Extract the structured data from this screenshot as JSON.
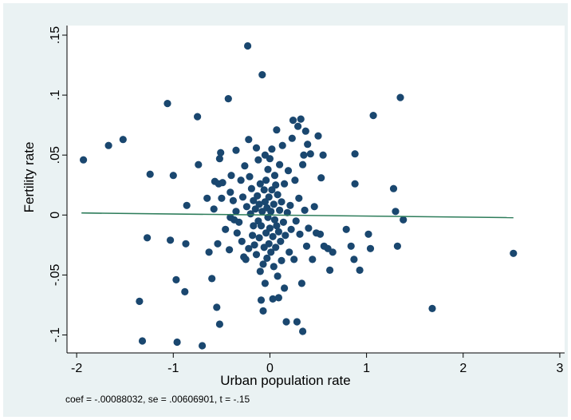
{
  "chart_data": {
    "type": "scatter",
    "title": "",
    "xlabel": "Urban population rate",
    "ylabel": "Fertility rate",
    "xlim": [
      -2.1,
      3.05
    ],
    "ylim": [
      -0.115,
      0.158
    ],
    "x_ticks": [
      -2,
      -1,
      0,
      1,
      2,
      3
    ],
    "x_tick_labels": [
      "-2",
      "-1",
      "0",
      "1",
      "2",
      "3"
    ],
    "y_ticks": [
      -0.1,
      -0.05,
      0,
      0.05,
      0.1,
      0.15
    ],
    "y_tick_labels": [
      "-.1",
      "-.05",
      "0",
      ".05",
      ".1",
      ".15"
    ],
    "grid": false,
    "legend": "none",
    "note": "coef = -.00088032, se = .00606901, t = -.15",
    "marker_color": "#1a476f",
    "fit_line_color": "#2e7d5b",
    "background_color": "#eaf2f3",
    "fit_line": {
      "x": [
        -1.95,
        2.52
      ],
      "y": [
        0.0017,
        -0.0022
      ]
    },
    "points": [
      [
        -1.93,
        0.046
      ],
      [
        -1.67,
        0.058
      ],
      [
        -1.52,
        0.063
      ],
      [
        -1.35,
        -0.072
      ],
      [
        -1.32,
        -0.105
      ],
      [
        -1.27,
        -0.019
      ],
      [
        -1.24,
        0.034
      ],
      [
        -1.06,
        0.093
      ],
      [
        -1.03,
        -0.021
      ],
      [
        -1.0,
        0.033
      ],
      [
        -0.97,
        -0.054
      ],
      [
        -0.96,
        -0.106
      ],
      [
        -0.88,
        -0.064
      ],
      [
        -0.87,
        -0.024
      ],
      [
        -0.86,
        0.008
      ],
      [
        -0.75,
        0.082
      ],
      [
        -0.74,
        0.042
      ],
      [
        -0.7,
        -0.109
      ],
      [
        -0.65,
        0.014
      ],
      [
        -0.63,
        -0.031
      ],
      [
        -0.6,
        -0.053
      ],
      [
        -0.58,
        0.005
      ],
      [
        -0.57,
        0.028
      ],
      [
        -0.55,
        -0.077
      ],
      [
        -0.54,
        -0.024
      ],
      [
        -0.53,
        0.026
      ],
      [
        -0.52,
        0.047
      ],
      [
        -0.52,
        -0.091
      ],
      [
        -0.51,
        0.052
      ],
      [
        -0.5,
        0.014
      ],
      [
        -0.49,
        0.027
      ],
      [
        -0.46,
        -0.012
      ],
      [
        -0.43,
        0.097
      ],
      [
        -0.42,
        -0.029
      ],
      [
        -0.41,
        0.019
      ],
      [
        -0.41,
        -0.002
      ],
      [
        -0.4,
        0.033
      ],
      [
        -0.38,
        0.012
      ],
      [
        -0.37,
        -0.004
      ],
      [
        -0.35,
        0.054
      ],
      [
        -0.35,
        0.003
      ],
      [
        -0.34,
        -0.015
      ],
      [
        -0.32,
        -0.006
      ],
      [
        -0.3,
        0.029
      ],
      [
        -0.29,
        -0.022
      ],
      [
        -0.28,
        0.015
      ],
      [
        -0.27,
        -0.035
      ],
      [
        -0.26,
        0.041
      ],
      [
        -0.25,
        -0.037
      ],
      [
        -0.24,
        0.007
      ],
      [
        -0.23,
        0.141
      ],
      [
        -0.22,
        -0.028
      ],
      [
        -0.22,
        0.063
      ],
      [
        -0.21,
        0.032
      ],
      [
        -0.2,
        0.001
      ],
      [
        -0.19,
        0.022
      ],
      [
        -0.18,
        -0.017
      ],
      [
        -0.17,
        0.012
      ],
      [
        -0.17,
        -0.009
      ],
      [
        -0.16,
        -0.025
      ],
      [
        -0.15,
        0.005
      ],
      [
        -0.14,
        -0.033
      ],
      [
        -0.14,
        0.056
      ],
      [
        -0.13,
        0.016
      ],
      [
        -0.12,
        -0.005
      ],
      [
        -0.12,
        0.046
      ],
      [
        -0.11,
        -0.019
      ],
      [
        -0.11,
        0.009
      ],
      [
        -0.1,
        -0.047
      ],
      [
        -0.1,
        0.026
      ],
      [
        -0.09,
        -0.009
      ],
      [
        -0.09,
        -0.071
      ],
      [
        -0.08,
        0.003
      ],
      [
        -0.08,
        0.117
      ],
      [
        -0.07,
        -0.041
      ],
      [
        -0.07,
        -0.08
      ],
      [
        -0.06,
        0.021
      ],
      [
        -0.06,
        -0.027
      ],
      [
        -0.05,
        0.05
      ],
      [
        -0.05,
        -0.057
      ],
      [
        -0.05,
        0.011
      ],
      [
        -0.04,
        -0.015
      ],
      [
        -0.04,
        0.029
      ],
      [
        -0.03,
        -0.036
      ],
      [
        -0.03,
        0.006
      ],
      [
        -0.02,
        -0.002
      ],
      [
        -0.02,
        0.038
      ],
      [
        -0.01,
        -0.024
      ],
      [
        -0.01,
        0.015
      ],
      [
        0.0,
        -0.011
      ],
      [
        0.0,
        0.047
      ],
      [
        0.01,
        -0.031
      ],
      [
        0.01,
        0.003
      ],
      [
        0.02,
        0.021
      ],
      [
        0.02,
        0.055
      ],
      [
        0.03,
        -0.018
      ],
      [
        0.03,
        -0.07
      ],
      [
        0.04,
        0.009
      ],
      [
        0.04,
        -0.043
      ],
      [
        0.05,
        0.033
      ],
      [
        0.05,
        -0.004
      ],
      [
        0.06,
        -0.027
      ],
      [
        0.06,
        0.025
      ],
      [
        0.07,
        0.071
      ],
      [
        0.07,
        -0.009
      ],
      [
        0.08,
        -0.051
      ],
      [
        0.08,
        0.017
      ],
      [
        0.09,
        -0.014
      ],
      [
        0.09,
        -0.069
      ],
      [
        0.1,
        0.042
      ],
      [
        0.1,
        0.004
      ],
      [
        0.11,
        -0.022
      ],
      [
        0.12,
        0.011
      ],
      [
        0.12,
        -0.038
      ],
      [
        0.13,
        0.058
      ],
      [
        0.14,
        -0.006
      ],
      [
        0.15,
        0.026
      ],
      [
        0.15,
        -0.061
      ],
      [
        0.16,
        -0.017
      ],
      [
        0.17,
        -0.089
      ],
      [
        0.18,
        0.002
      ],
      [
        0.19,
        0.037
      ],
      [
        0.2,
        -0.031
      ],
      [
        0.21,
        0.008
      ],
      [
        0.22,
        -0.012
      ],
      [
        0.23,
        0.064
      ],
      [
        0.24,
        0.079
      ],
      [
        0.25,
        -0.037
      ],
      [
        0.26,
        0.029
      ],
      [
        0.27,
        -0.005
      ],
      [
        0.28,
        -0.089
      ],
      [
        0.29,
        0.074
      ],
      [
        0.3,
        0.014
      ],
      [
        0.31,
        -0.016
      ],
      [
        0.32,
        0.08
      ],
      [
        0.33,
        -0.057
      ],
      [
        0.34,
        0.042
      ],
      [
        0.34,
        -0.097
      ],
      [
        0.35,
        0.05
      ],
      [
        0.36,
        0.004
      ],
      [
        0.37,
        0.07
      ],
      [
        0.38,
        -0.026
      ],
      [
        0.39,
        0.059
      ],
      [
        0.4,
        -0.011
      ],
      [
        0.42,
        0.051
      ],
      [
        0.44,
        -0.037
      ],
      [
        0.46,
        0.007
      ],
      [
        0.48,
        -0.015
      ],
      [
        0.5,
        0.066
      ],
      [
        0.52,
        -0.016
      ],
      [
        0.53,
        0.031
      ],
      [
        0.55,
        0.05
      ],
      [
        0.56,
        -0.026
      ],
      [
        0.6,
        -0.028
      ],
      [
        0.62,
        -0.046
      ],
      [
        0.65,
        -0.031
      ],
      [
        0.79,
        -0.012
      ],
      [
        0.84,
        -0.026
      ],
      [
        0.87,
        -0.037
      ],
      [
        0.88,
        0.051
      ],
      [
        0.88,
        0.026
      ],
      [
        0.93,
        -0.046
      ],
      [
        1.02,
        -0.016
      ],
      [
        1.04,
        -0.028
      ],
      [
        1.07,
        0.083
      ],
      [
        1.28,
        0.022
      ],
      [
        1.3,
        0.003
      ],
      [
        1.32,
        -0.026
      ],
      [
        1.35,
        0.098
      ],
      [
        1.38,
        -0.004
      ],
      [
        1.68,
        -0.078
      ],
      [
        2.52,
        -0.032
      ]
    ]
  }
}
